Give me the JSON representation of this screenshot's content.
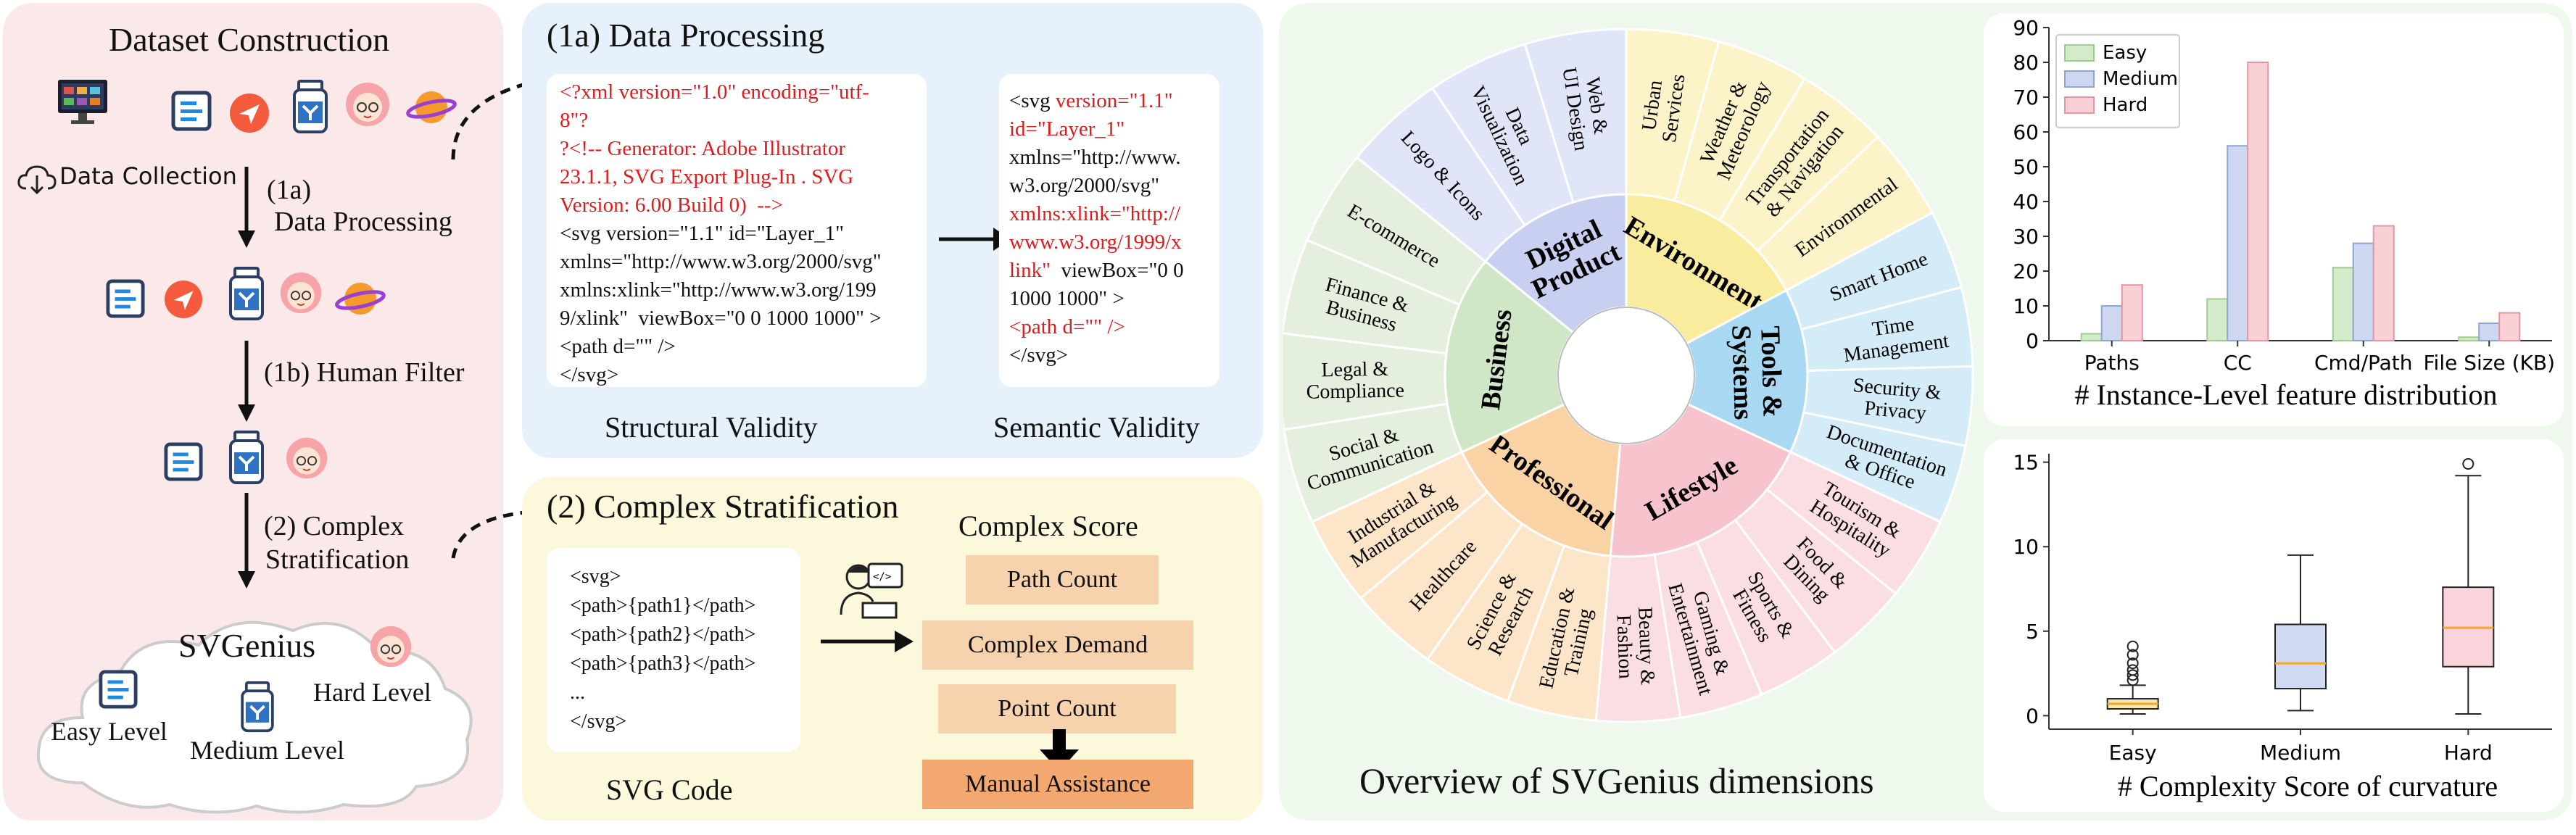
{
  "construction": {
    "title": "Dataset Construction",
    "data_collection": "Data Collection",
    "step1a_label": "(1a)",
    "step1a_text": "Data Processing",
    "step1b": "(1b) Human Filter",
    "step2_label": "(2) Complex",
    "step2_text": "Stratification",
    "cloud_title": "SVGenius",
    "easy": "Easy Level",
    "medium": "Medium Level",
    "hard": "Hard Level"
  },
  "processing": {
    "title": "(1a) Data Processing",
    "structural_lines": [
      {
        "text": "<?xml version=\"1.0\" encoding=\"utf-",
        "red": true
      },
      {
        "text": "8\"?",
        "red": true
      },
      {
        "text": "?<!-- Generator: Adobe Illustrator",
        "red": true
      },
      {
        "text": "23.1.1, SVG Export Plug-In . SVG",
        "red": true
      },
      {
        "text": "Version: 6.00 Build 0)  -->",
        "red": true
      },
      {
        "text": "<svg version=\"1.1\" id=\"Layer_1\"",
        "red": false
      },
      {
        "text": "xmlns=\"http://www.w3.org/2000/svg\"",
        "red": false
      },
      {
        "text": "xmlns:xlink=\"http://www.w3.org/199",
        "red": false
      },
      {
        "text": "9/xlink\"  viewBox=\"0 0 1000 1000\" >",
        "red": false
      },
      {
        "text": "<path d=\"\" />",
        "red": false
      },
      {
        "text": "</svg>",
        "red": false
      }
    ],
    "semantic_lines": [
      {
        "text": "<svg ",
        "red": false,
        "tail": "version=\"1.1\""
      },
      {
        "text": "id=\"Layer_1\"",
        "red": true
      },
      {
        "text": "xmlns=\"http://www.",
        "red": false
      },
      {
        "text": "w3.org/2000/svg\"",
        "red": false
      },
      {
        "text": "xmlns:xlink=\"http://",
        "red": true
      },
      {
        "text": "www.w3.org/1999/x",
        "red": true
      },
      {
        "text": "link\"",
        "red": true,
        "tail_black": "  viewBox=\"0 0"
      },
      {
        "text": "1000 1000\" >",
        "red": false
      },
      {
        "text": "<path d=\"\" />",
        "red": true
      },
      {
        "text": "</svg>",
        "red": false
      }
    ],
    "structural_caption": "Structural Validity",
    "semantic_caption": "Semantic Validity"
  },
  "stratification": {
    "title": "(2) Complex Stratification",
    "code_lines": [
      "<svg>",
      "<path>{path1}</path>",
      "<path>{path2}</path>",
      "<path>{path3}</path>",
      "...",
      "</svg>"
    ],
    "code_caption": "SVG Code",
    "score_title": "Complex Score",
    "boxes": [
      "Path Count",
      "Complex Demand",
      "Point Count",
      "Manual Assistance"
    ]
  },
  "wheel": {
    "caption": "Overview of SVGenius dimensions",
    "colors": {
      "digital": "#c9cff0",
      "environment": "#f9ec9e",
      "tools": "#a9d8f2",
      "lifestyle": "#f7c3cc",
      "professional": "#f9d3a3",
      "business": "#cfe6c7",
      "digital_outer": "#e1e5f8",
      "environment_outer": "#fcf4c8",
      "tools_outer": "#d4ebf8",
      "lifestyle_outer": "#fbdee3",
      "professional_outer": "#fce5c8",
      "business_outer": "#e4f0dd"
    },
    "inner": [
      {
        "key": "digital",
        "lines": [
          "Digital",
          "Product"
        ],
        "start": -51,
        "end": 0
      },
      {
        "key": "environment",
        "lines": [
          "Environment"
        ],
        "start": 0,
        "end": 62
      },
      {
        "key": "tools",
        "lines": [
          "Tools &",
          "Systems"
        ],
        "start": 62,
        "end": 115
      },
      {
        "key": "lifestyle",
        "lines": [
          "Lifestyle"
        ],
        "start": 115,
        "end": 185
      },
      {
        "key": "professional",
        "lines": [
          "Professional"
        ],
        "start": 185,
        "end": 245
      },
      {
        "key": "business",
        "lines": [
          "Business"
        ],
        "start": 245,
        "end": 309
      }
    ],
    "outer": [
      {
        "group": "digital",
        "lines": [
          "Logo & Icons"
        ]
      },
      {
        "group": "digital",
        "lines": [
          "Data",
          "Visualization"
        ]
      },
      {
        "group": "digital",
        "lines": [
          "Web &",
          "UI Design"
        ]
      },
      {
        "group": "environment",
        "lines": [
          "Urban",
          "Services"
        ]
      },
      {
        "group": "environment",
        "lines": [
          "Weather &",
          "Meteorology"
        ]
      },
      {
        "group": "environment",
        "lines": [
          "Transportation",
          "& Navigation"
        ]
      },
      {
        "group": "environment",
        "lines": [
          "Environmental"
        ]
      },
      {
        "group": "tools",
        "lines": [
          "Smart Home"
        ]
      },
      {
        "group": "tools",
        "lines": [
          "Time",
          "Management"
        ]
      },
      {
        "group": "tools",
        "lines": [
          "Security &",
          "Privacy"
        ]
      },
      {
        "group": "tools",
        "lines": [
          "Documentation",
          "& Office"
        ]
      },
      {
        "group": "lifestyle",
        "lines": [
          "Tourism &",
          "Hospitality"
        ]
      },
      {
        "group": "lifestyle",
        "lines": [
          "Food &",
          "Dining"
        ]
      },
      {
        "group": "lifestyle",
        "lines": [
          "Sports &",
          "Fitness"
        ]
      },
      {
        "group": "lifestyle",
        "lines": [
          "Gaming &",
          "Entertainment"
        ]
      },
      {
        "group": "lifestyle",
        "lines": [
          "Beauty &",
          "Fashion"
        ]
      },
      {
        "group": "professional",
        "lines": [
          "Education &",
          "Training"
        ]
      },
      {
        "group": "professional",
        "lines": [
          "Science &",
          "Research"
        ]
      },
      {
        "group": "professional",
        "lines": [
          "Healthcare"
        ]
      },
      {
        "group": "professional",
        "lines": [
          "Industrial &",
          "Manufacturing"
        ]
      },
      {
        "group": "business",
        "lines": [
          "Social &",
          "Communication"
        ]
      },
      {
        "group": "business",
        "lines": [
          "Legal &",
          "Compliance"
        ]
      },
      {
        "group": "business",
        "lines": [
          "Finance &",
          "Business"
        ]
      },
      {
        "group": "business",
        "lines": [
          "E-commerce"
        ]
      }
    ]
  },
  "chart_data": [
    {
      "type": "bar",
      "title": "# Instance-Level feature distribution",
      "categories": [
        "Paths",
        "CC",
        "Cmd/Path",
        "File Size (KB)"
      ],
      "series": [
        {
          "name": "Easy",
          "values": [
            2,
            12,
            21,
            1
          ],
          "color": "#d3ebc9",
          "edge": "#9fcc8f"
        },
        {
          "name": "Medium",
          "values": [
            10,
            56,
            28,
            5
          ],
          "color": "#cdd8f0",
          "edge": "#8fa5d6"
        },
        {
          "name": "Hard",
          "values": [
            16,
            80,
            33,
            8
          ],
          "color": "#f8d0d6",
          "edge": "#e596a2"
        }
      ],
      "ylim": [
        0,
        90
      ],
      "yticks": [
        0,
        10,
        20,
        30,
        40,
        50,
        60,
        70,
        80,
        90
      ],
      "legend": "top-left"
    },
    {
      "type": "box",
      "title": "# Complexity Score of curvature",
      "categories": [
        "Easy",
        "Medium",
        "Hard"
      ],
      "boxes": [
        {
          "name": "Easy",
          "whislo": 0.1,
          "q1": 0.4,
          "median": 0.7,
          "q3": 1.0,
          "whishi": 1.8,
          "fliers": [
            2.1,
            2.4,
            2.7,
            3.1,
            3.6,
            4.1
          ],
          "color": "#f6e9b5"
        },
        {
          "name": "Medium",
          "whislo": 0.3,
          "q1": 1.6,
          "median": 3.1,
          "q3": 5.4,
          "whishi": 9.5,
          "fliers": [],
          "color": "#cfd9f1"
        },
        {
          "name": "Hard",
          "whislo": 0.1,
          "q1": 2.9,
          "median": 5.2,
          "q3": 7.6,
          "whishi": 14.2,
          "fliers": [
            14.9
          ],
          "color": "#f9d4da"
        }
      ],
      "ylim": [
        -0.8,
        15.5
      ],
      "yticks": [
        0,
        5,
        10,
        15
      ]
    }
  ]
}
